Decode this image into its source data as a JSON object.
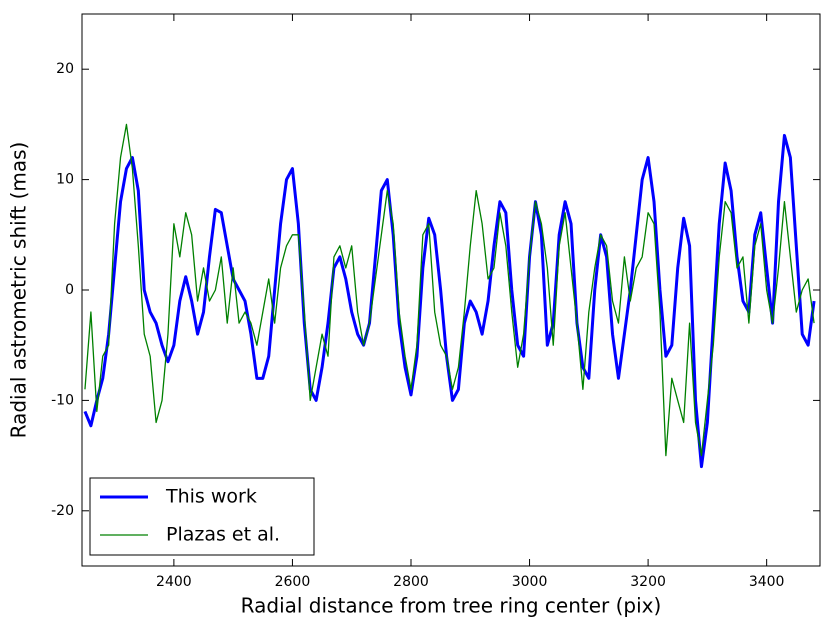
{
  "chart_data": {
    "type": "line",
    "xlabel": "Radial distance from tree ring center (pix)",
    "ylabel": "Radial astrometric shift (mas)",
    "x": [
      2250,
      2260,
      2270,
      2280,
      2290,
      2300,
      2310,
      2320,
      2330,
      2340,
      2350,
      2360,
      2370,
      2380,
      2390,
      2400,
      2410,
      2420,
      2430,
      2440,
      2450,
      2460,
      2470,
      2480,
      2490,
      2500,
      2510,
      2520,
      2530,
      2540,
      2550,
      2560,
      2570,
      2580,
      2590,
      2600,
      2610,
      2620,
      2630,
      2640,
      2650,
      2660,
      2670,
      2680,
      2690,
      2700,
      2710,
      2720,
      2730,
      2740,
      2750,
      2760,
      2770,
      2780,
      2790,
      2800,
      2810,
      2820,
      2830,
      2840,
      2850,
      2860,
      2870,
      2880,
      2890,
      2900,
      2910,
      2920,
      2930,
      2940,
      2950,
      2960,
      2970,
      2980,
      2990,
      3000,
      3010,
      3020,
      3030,
      3040,
      3050,
      3060,
      3070,
      3080,
      3090,
      3100,
      3110,
      3120,
      3130,
      3140,
      3150,
      3160,
      3170,
      3180,
      3190,
      3200,
      3210,
      3220,
      3230,
      3240,
      3250,
      3260,
      3270,
      3280,
      3290,
      3300,
      3310,
      3320,
      3330,
      3340,
      3350,
      3360,
      3370,
      3380,
      3390,
      3400,
      3410,
      3420,
      3430,
      3440,
      3450,
      3460,
      3470,
      3480
    ],
    "series": [
      {
        "name": "This work",
        "color": "#0000ff",
        "width": 3,
        "values": [
          -11,
          -12.3,
          -10,
          -8,
          -4,
          2,
          8,
          11,
          12,
          9,
          0,
          -2,
          -3,
          -5,
          -6.5,
          -5,
          -1,
          1.2,
          -1,
          -4,
          -2,
          3,
          7.3,
          7,
          4,
          1,
          0,
          -1,
          -4,
          -8,
          -8,
          -6,
          0,
          6,
          10,
          11,
          6,
          -3,
          -9,
          -10,
          -7,
          -3,
          2,
          3,
          1,
          -2,
          -4,
          -5,
          -3,
          3,
          9,
          10,
          5,
          -3,
          -7,
          -9.5,
          -6,
          2,
          6.5,
          5,
          0,
          -6,
          -10,
          -9,
          -3,
          -1,
          -2,
          -4,
          -1,
          4,
          8,
          7,
          0,
          -5,
          -6,
          3,
          8,
          5,
          -5,
          -3,
          5,
          8,
          6,
          -3,
          -7,
          -8,
          0,
          5,
          3,
          -4,
          -8,
          -4,
          0,
          5,
          10,
          12,
          8,
          0,
          -6,
          -5,
          2,
          6.5,
          4,
          -10,
          -16,
          -12,
          -3,
          6,
          11.5,
          9,
          3,
          -1,
          -2,
          5,
          7,
          2,
          -3,
          8,
          14,
          12,
          4,
          -4,
          -5,
          -1
        ]
      },
      {
        "name": "Plazas et al.",
        "color": "#008000",
        "width": 1.3,
        "values": [
          -9,
          -2,
          -11,
          -6,
          -5,
          6,
          12,
          15,
          11,
          4,
          -4,
          -6,
          -12,
          -10,
          -4,
          6,
          3,
          7,
          5,
          -1,
          2,
          -1,
          0,
          3,
          -3,
          2,
          -3,
          -2,
          -3,
          -5,
          -2,
          1,
          -3,
          2,
          4,
          5,
          5,
          -2,
          -10,
          -7,
          -4,
          -6,
          3,
          4,
          2,
          4,
          -2,
          -5,
          -3,
          1,
          5,
          9,
          6,
          -2,
          -6,
          -9,
          -5,
          5,
          6,
          -2,
          -5,
          -6,
          -9,
          -7,
          -2,
          4,
          9,
          6,
          1,
          2,
          7,
          4,
          -2,
          -7,
          -4,
          3,
          8,
          6,
          2,
          -5,
          4,
          7,
          2,
          -3,
          -9,
          -2,
          2,
          5,
          4,
          -1,
          -3,
          3,
          -1,
          2,
          3,
          7,
          6,
          -2,
          -15,
          -8,
          -10,
          -12,
          -3,
          -12,
          -15,
          -10,
          -5,
          3,
          8,
          7,
          2,
          3,
          -3,
          4,
          6,
          0,
          -3,
          2,
          8,
          3,
          -2,
          0,
          1,
          -3
        ]
      }
    ],
    "xlim": [
      2245,
      3490
    ],
    "ylim": [
      -25,
      25
    ],
    "xticks": [
      2400,
      2600,
      2800,
      3000,
      3200,
      3400
    ],
    "yticks": [
      -20,
      -10,
      0,
      10,
      20
    ],
    "legend": "lower left"
  }
}
